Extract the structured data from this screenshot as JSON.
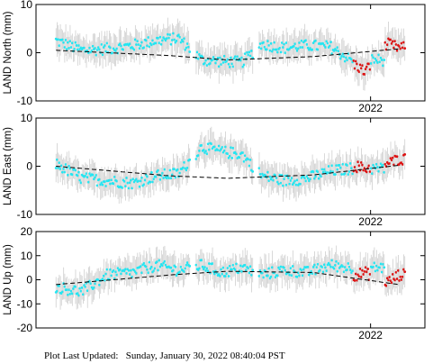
{
  "footer": {
    "label": "Plot Last Updated:",
    "value": "Sunday, January 30, 2022 08:40:04 PST"
  },
  "colors": {
    "primary": "#22e6f2",
    "recent": "#dd1111",
    "errorbar": "#cfcfcf",
    "trend": "#000000"
  },
  "chart_data": [
    {
      "type": "scatter",
      "ylabel": "LAND North (mm)",
      "ylim": [
        -10,
        10
      ],
      "yticks": [
        -10,
        0,
        10
      ],
      "xtick_labels": [
        "2022"
      ],
      "x_range": [
        2020.83,
        2022.19
      ],
      "grid": false,
      "series": [
        {
          "x": [
            2020.9,
            2020.99,
            2021.08,
            2021.17,
            2021.25,
            2021.33,
            2021.41,
            2021.48,
            2021.55,
            2021.62,
            2021.7,
            2021.78,
            2021.86,
            2021.93
          ],
          "values": [
            2.5,
            0.5,
            0.8,
            1.5,
            2.5,
            3.0,
            -1.5,
            -1.8,
            -2.0,
            1.8,
            1.0,
            1.5,
            1.2,
            -1.5
          ]
        },
        {
          "x": [
            2021.95,
            2021.98,
            2022.06,
            2022.1
          ],
          "values": [
            -2.5,
            -4.0,
            1.8,
            1.0
          ]
        }
      ],
      "trend": {
        "x": [
          2020.9,
          2021.3,
          2021.5,
          2021.8,
          2022.1
        ],
        "values": [
          0.5,
          -0.6,
          -1.5,
          -0.8,
          0.8
        ]
      }
    },
    {
      "type": "scatter",
      "ylabel": "LAND East (mm)",
      "ylim": [
        -10,
        10
      ],
      "yticks": [
        -10,
        0,
        10
      ],
      "xtick_labels": [
        "2022"
      ],
      "x_range": [
        2020.83,
        2022.19
      ],
      "grid": false,
      "series": [
        {
          "x": [
            2020.9,
            2020.99,
            2021.08,
            2021.17,
            2021.25,
            2021.33,
            2021.41,
            2021.48,
            2021.55,
            2021.62,
            2021.7,
            2021.78,
            2021.86,
            2021.93
          ],
          "values": [
            0.5,
            -2.5,
            -3.0,
            -3.5,
            -2.0,
            -1.5,
            4.0,
            3.0,
            2.5,
            -2.0,
            -3.0,
            -2.5,
            -1.0,
            -0.5
          ]
        },
        {
          "x": [
            2021.95,
            2021.98,
            2022.06,
            2022.1
          ],
          "values": [
            0.0,
            -0.5,
            0.5,
            1.5
          ]
        }
      ],
      "trend": {
        "x": [
          2020.9,
          2021.3,
          2021.5,
          2021.8,
          2022.1
        ],
        "values": [
          0.0,
          -2.0,
          -2.5,
          -1.8,
          0.2
        ]
      }
    },
    {
      "type": "scatter",
      "ylabel": "LAND Up (mm)",
      "ylim": [
        -20,
        20
      ],
      "yticks": [
        -20,
        -10,
        0,
        10,
        20
      ],
      "xtick_labels": [
        "2022"
      ],
      "x_range": [
        2020.83,
        2022.19
      ],
      "grid": false,
      "series": [
        {
          "x": [
            2020.9,
            2020.99,
            2021.08,
            2021.17,
            2021.25,
            2021.33,
            2021.41,
            2021.48,
            2021.55,
            2021.62,
            2021.7,
            2021.78,
            2021.86,
            2021.93
          ],
          "values": [
            -3.0,
            -5.0,
            2.0,
            3.0,
            6.0,
            4.0,
            6.0,
            3.0,
            5.0,
            2.0,
            4.0,
            3.0,
            6.0,
            5.0
          ]
        },
        {
          "x": [
            2021.95,
            2021.98,
            2022.06,
            2022.1
          ],
          "values": [
            2.0,
            3.0,
            -1.0,
            2.0
          ]
        }
      ],
      "trend": {
        "x": [
          2020.9,
          2021.3,
          2021.5,
          2021.8,
          2022.1
        ],
        "values": [
          -2.0,
          2.0,
          3.5,
          3.0,
          -2.0
        ]
      }
    }
  ]
}
